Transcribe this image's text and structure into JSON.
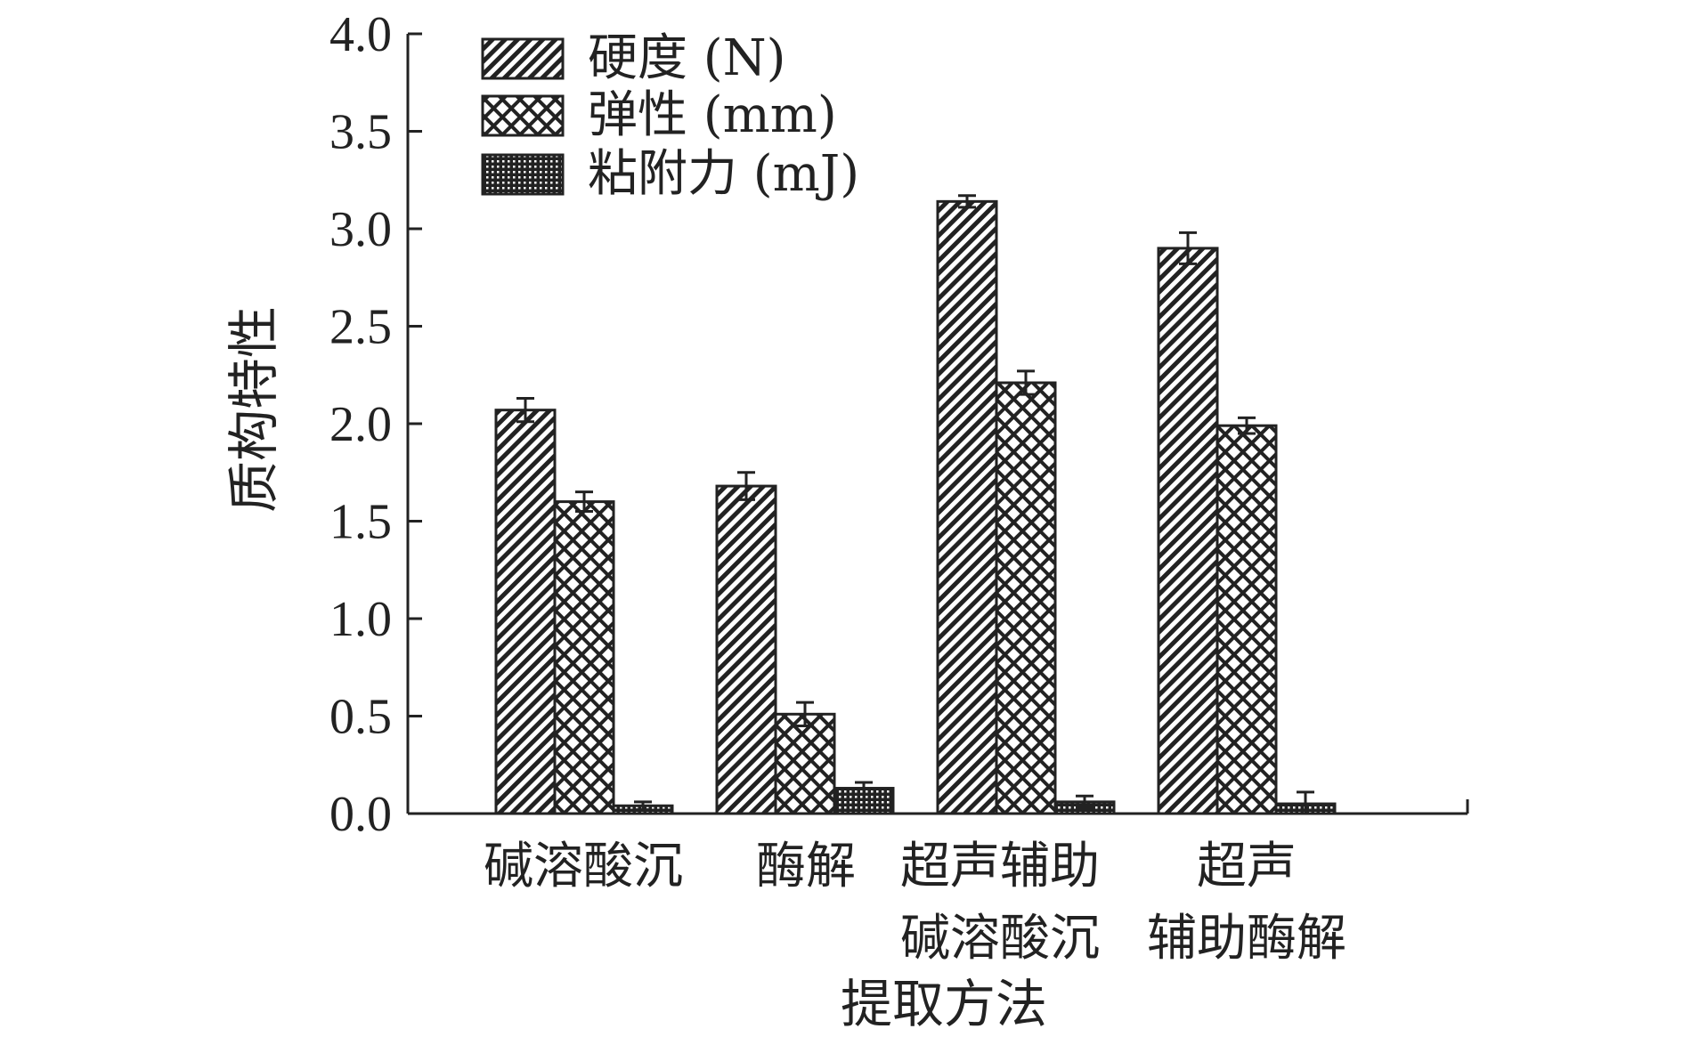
{
  "chart_data": {
    "type": "bar",
    "title": "",
    "xlabel": "提取方法",
    "ylabel": "质构特性",
    "ylim": [
      0,
      4.0
    ],
    "yticks": [
      "0.0",
      "0.5",
      "1.0",
      "1.5",
      "2.0",
      "2.5",
      "3.0",
      "3.5",
      "4.0"
    ],
    "categories": [
      [
        "碱溶酸沉"
      ],
      [
        "酶解"
      ],
      [
        "超声辅助",
        "碱溶酸沉"
      ],
      [
        "超声",
        "辅助酶解"
      ]
    ],
    "series": [
      {
        "name": "硬度 (N)",
        "pattern": "diagonal-hatch",
        "values": [
          2.07,
          1.68,
          3.14,
          2.9
        ],
        "errors": [
          0.06,
          0.07,
          0.03,
          0.08
        ]
      },
      {
        "name": "弹性 (mm)",
        "pattern": "crosshatch",
        "values": [
          1.6,
          0.51,
          2.21,
          1.99
        ],
        "errors": [
          0.05,
          0.06,
          0.06,
          0.04
        ]
      },
      {
        "name": "粘附力 (mJ)",
        "pattern": "dense-grid",
        "values": [
          0.04,
          0.13,
          0.06,
          0.05
        ],
        "errors": [
          0.02,
          0.03,
          0.03,
          0.06
        ]
      }
    ],
    "legend_position": "top-left",
    "grid": false,
    "colors": {
      "ink": "#222222",
      "background": "#ffffff"
    }
  }
}
